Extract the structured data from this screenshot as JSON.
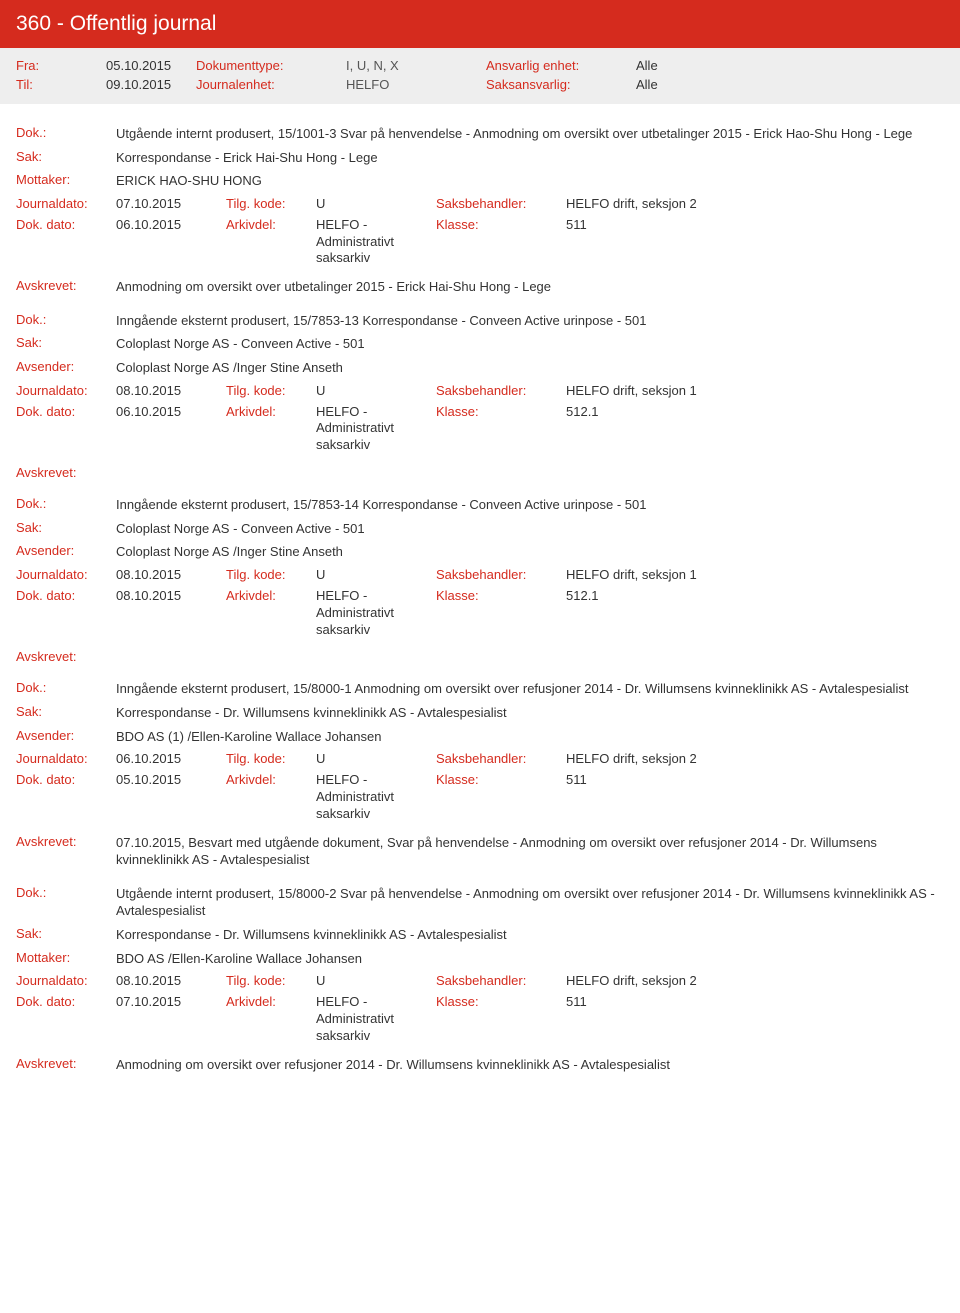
{
  "header": {
    "title": "360 - Offentlig journal"
  },
  "meta": {
    "fra_label": "Fra:",
    "fra": "05.10.2015",
    "til_label": "Til:",
    "til": "09.10.2015",
    "doktype_label": "Dokumenttype:",
    "doktype": "I, U, N, X",
    "journalenhet_label": "Journalenhet:",
    "journalenhet": "HELFO",
    "ansvarlig_label": "Ansvarlig enhet:",
    "ansvarlig": "Alle",
    "saksansvarlig_label": "Saksansvarlig:",
    "saksansvarlig": "Alle"
  },
  "labels": {
    "dok": "Dok.:",
    "sak": "Sak:",
    "mottaker": "Mottaker:",
    "avsender": "Avsender:",
    "journaldato": "Journaldato:",
    "dokdato": "Dok. dato:",
    "tilgkode": "Tilg. kode:",
    "arkivdel": "Arkivdel:",
    "saksbehandler": "Saksbehandler:",
    "klasse": "Klasse:",
    "avskrevet": "Avskrevet:"
  },
  "arkiv_value": "HELFO - Administrativt saksarkiv",
  "entries": [
    {
      "dok": "Utgående internt produsert, 15/1001-3 Svar på henvendelse - Anmodning om oversikt over utbetalinger 2015 - Erick Hao-Shu Hong - Lege",
      "sak": "Korrespondanse - Erick Hai-Shu Hong - Lege",
      "party_label": "Mottaker:",
      "party": "ERICK HAO-SHU HONG",
      "journaldato": "07.10.2015",
      "tilgkode": "U",
      "saksbehandler": "HELFO drift, seksjon 2",
      "dokdato": "06.10.2015",
      "klasse": "511",
      "avskrevet": "Anmodning om oversikt over utbetalinger 2015 - Erick Hai-Shu Hong - Lege"
    },
    {
      "dok": "Inngående eksternt produsert, 15/7853-13 Korrespondanse - Conveen Active urinpose - 501",
      "sak": "Coloplast Norge AS - Conveen Active - 501",
      "party_label": "Avsender:",
      "party": "Coloplast Norge AS /Inger Stine Anseth",
      "journaldato": "08.10.2015",
      "tilgkode": "U",
      "saksbehandler": "HELFO drift, seksjon 1",
      "dokdato": "06.10.2015",
      "klasse": "512.1",
      "avskrevet": ""
    },
    {
      "dok": "Inngående eksternt produsert, 15/7853-14 Korrespondanse - Conveen Active urinpose - 501",
      "sak": "Coloplast Norge AS - Conveen Active - 501",
      "party_label": "Avsender:",
      "party": "Coloplast Norge AS /Inger Stine Anseth",
      "journaldato": "08.10.2015",
      "tilgkode": "U",
      "saksbehandler": "HELFO drift, seksjon 1",
      "dokdato": "08.10.2015",
      "klasse": "512.1",
      "avskrevet": ""
    },
    {
      "dok": "Inngående eksternt produsert, 15/8000-1 Anmodning om oversikt over refusjoner 2014 - Dr. Willumsens kvinneklinikk AS - Avtalespesialist",
      "sak": "Korrespondanse - Dr. Willumsens kvinneklinikk AS - Avtalespesialist",
      "party_label": "Avsender:",
      "party": "BDO AS (1) /Ellen-Karoline Wallace Johansen",
      "journaldato": "06.10.2015",
      "tilgkode": "U",
      "saksbehandler": "HELFO drift, seksjon 2",
      "dokdato": "05.10.2015",
      "klasse": "511",
      "avskrevet": "07.10.2015, Besvart med utgående dokument, Svar på henvendelse - Anmodning om oversikt over refusjoner 2014 - Dr. Willumsens kvinneklinikk AS - Avtalespesialist"
    },
    {
      "dok": "Utgående internt produsert, 15/8000-2 Svar på henvendelse - Anmodning om oversikt over refusjoner 2014 - Dr. Willumsens kvinneklinikk AS - Avtalespesialist",
      "sak": "Korrespondanse - Dr. Willumsens kvinneklinikk AS - Avtalespesialist",
      "party_label": "Mottaker:",
      "party": "BDO AS /Ellen-Karoline Wallace Johansen",
      "journaldato": "08.10.2015",
      "tilgkode": "U",
      "saksbehandler": "HELFO drift, seksjon 2",
      "dokdato": "07.10.2015",
      "klasse": "511",
      "avskrevet": "Anmodning om oversikt over refusjoner 2014 - Dr. Willumsens kvinneklinikk AS - Avtalespesialist"
    }
  ]
}
